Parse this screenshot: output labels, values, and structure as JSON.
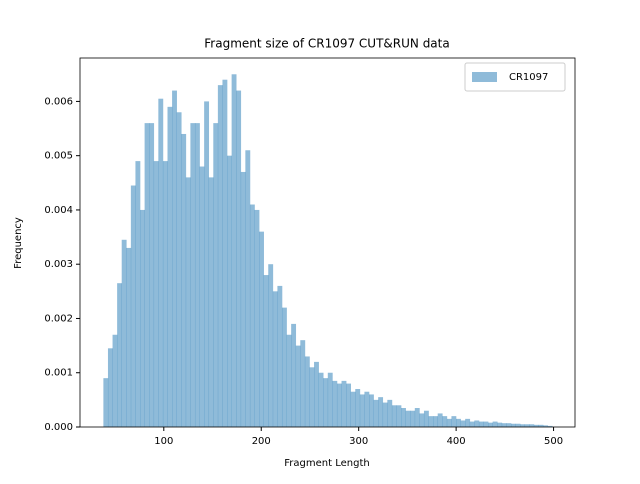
{
  "chart_data": {
    "type": "histogram",
    "title": "Fragment size of CR1097 CUT&RUN data",
    "x_label": "Fragment Length",
    "y_label": "Frequency",
    "series": [
      {
        "name": "CR1097",
        "color": "#1f77b4",
        "alpha": 0.5,
        "bins": [
          38,
          42.7,
          47.4,
          52.1,
          56.8,
          61.5,
          66.2,
          70.9,
          75.6,
          80.3,
          85,
          89.7,
          94.4,
          99.1,
          103.8,
          108.5,
          113.2,
          117.9,
          122.6,
          127.3,
          132,
          136.7,
          141.4,
          146.1,
          150.8,
          155.5,
          160.2,
          164.9,
          169.6,
          174.3,
          179,
          183.7,
          188.4,
          193.1,
          197.8,
          202.5,
          207.2,
          211.9,
          216.6,
          221.3,
          226,
          230.7,
          235.4,
          240.1,
          244.8,
          249.5,
          254.2,
          258.9,
          263.6,
          268.3,
          273,
          277.7,
          282.4,
          287.1,
          291.8,
          296.5,
          301.2,
          305.9,
          310.6,
          315.3,
          320,
          324.7,
          329.4,
          334.1,
          338.8,
          343.5,
          348.2,
          352.9,
          357.6,
          362.3,
          367,
          371.7,
          376.4,
          381.1,
          385.8,
          390.5,
          395.2,
          399.9,
          404.6,
          409.3,
          414,
          418.7,
          423.4,
          428.1,
          432.8,
          437.5,
          442.2,
          446.9,
          451.6,
          456.3,
          461,
          465.7,
          470.4,
          475.1,
          479.8,
          484.5,
          489.2,
          493.9,
          498.6
        ],
        "counts": [
          0.0009,
          0.00145,
          0.0017,
          0.00265,
          0.00345,
          0.0033,
          0.00445,
          0.0049,
          0.004,
          0.0056,
          0.0056,
          0.0049,
          0.00605,
          0.0049,
          0.0059,
          0.0062,
          0.0058,
          0.0054,
          0.0046,
          0.0056,
          0.0056,
          0.0048,
          0.006,
          0.0046,
          0.0056,
          0.0063,
          0.0064,
          0.005,
          0.0065,
          0.0062,
          0.0047,
          0.0051,
          0.0041,
          0.004,
          0.0036,
          0.0028,
          0.003,
          0.0025,
          0.0026,
          0.0022,
          0.0017,
          0.0019,
          0.0015,
          0.0016,
          0.0013,
          0.0011,
          0.0012,
          0.001,
          0.0009,
          0.001,
          0.00085,
          0.0008,
          0.00085,
          0.0008,
          0.00065,
          0.0007,
          0.0006,
          0.00065,
          0.0006,
          0.0005,
          0.00055,
          0.00045,
          0.0005,
          0.0004,
          0.0004,
          0.00035,
          0.0003,
          0.0003,
          0.00035,
          0.00025,
          0.0003,
          0.0002,
          0.0002,
          0.00025,
          0.0002,
          0.00015,
          0.0002,
          0.00015,
          0.00012,
          0.00015,
          0.0001,
          0.00012,
          0.0001,
          0.0001,
          8e-05,
          0.0001,
          8e-05,
          7e-05,
          7e-05,
          6e-05,
          6e-05,
          5e-05,
          5e-05,
          5e-05,
          4e-05,
          4e-05,
          3e-05,
          2e-05
        ]
      }
    ],
    "xlim": [
      14,
      522
    ],
    "xticks": [
      100,
      200,
      300,
      400,
      500
    ],
    "ylim": [
      0,
      0.0068
    ],
    "yticks": [
      {
        "value": 0,
        "label": "0.000"
      },
      {
        "value": 0.001,
        "label": "0.001"
      },
      {
        "value": 0.002,
        "label": "0.002"
      },
      {
        "value": 0.003,
        "label": "0.003"
      },
      {
        "value": 0.004,
        "label": "0.004"
      },
      {
        "value": 0.005,
        "label": "0.005"
      },
      {
        "value": 0.006,
        "label": "0.006"
      }
    ],
    "legend": "upper right"
  }
}
